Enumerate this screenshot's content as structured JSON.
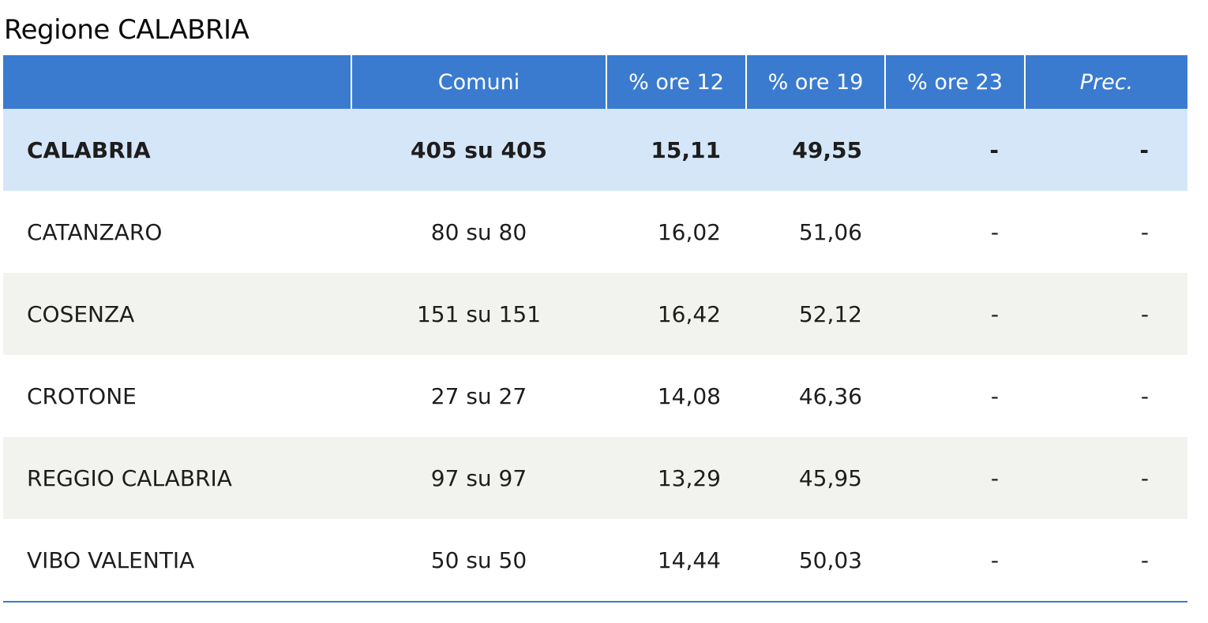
{
  "title": "Regione CALABRIA",
  "table": {
    "headers": [
      "",
      "Comuni",
      "% ore 12",
      "% ore 19",
      "% ore 23",
      "Prec."
    ],
    "rows": [
      {
        "name": "CALABRIA",
        "comuni": "405 su 405",
        "ore12": "15,11",
        "ore19": "49,55",
        "ore23": "-",
        "prec": "-",
        "is_total": true
      },
      {
        "name": "CATANZARO",
        "comuni": "80 su 80",
        "ore12": "16,02",
        "ore19": "51,06",
        "ore23": "-",
        "prec": "-"
      },
      {
        "name": "COSENZA",
        "comuni": "151 su 151",
        "ore12": "16,42",
        "ore19": "52,12",
        "ore23": "-",
        "prec": "-"
      },
      {
        "name": "CROTONE",
        "comuni": "27 su 27",
        "ore12": "14,08",
        "ore19": "46,36",
        "ore23": "-",
        "prec": "-"
      },
      {
        "name": "REGGIO CALABRIA",
        "comuni": "97 su 97",
        "ore12": "13,29",
        "ore19": "45,95",
        "ore23": "-",
        "prec": "-"
      },
      {
        "name": "VIBO VALENTIA",
        "comuni": "50 su 50",
        "ore12": "14,44",
        "ore19": "50,03",
        "ore23": "-",
        "prec": "-"
      }
    ]
  },
  "colors": {
    "header_bg": "#3a7bd0",
    "total_row_bg": "#d6e6f9",
    "striped_row_bg": "#f2f3ee",
    "rule": "#3a7bd0"
  }
}
